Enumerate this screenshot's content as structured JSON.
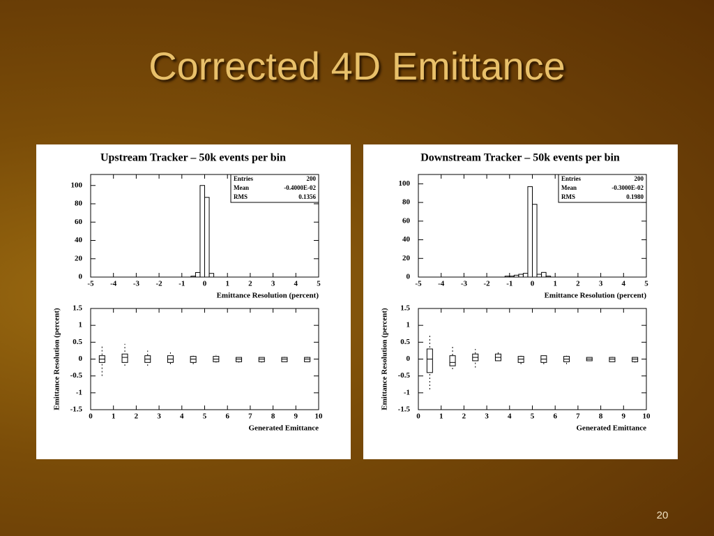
{
  "slide": {
    "title": "Corrected 4D Emittance",
    "page_number": "20"
  },
  "chart_data": [
    {
      "type": "histogram",
      "title": "Upstream Tracker – 50k events per bin",
      "bins": [
        -0.6,
        -0.4,
        -0.2,
        0,
        0.2,
        0.4
      ],
      "counts": [
        1,
        5,
        100,
        87,
        4
      ],
      "xlabel": "Emittance Resolution (percent)",
      "xlim": [
        -5,
        5
      ],
      "xticks": [
        -5,
        -4,
        -3,
        -2,
        -1,
        0,
        1,
        2,
        3,
        4,
        5
      ],
      "ylim": [
        0,
        112
      ],
      "yticks": [
        0,
        20,
        40,
        60,
        80,
        100
      ],
      "stats": [
        {
          "label": "Entries",
          "value": "200"
        },
        {
          "label": "Mean",
          "value": "-0.4000E-02"
        },
        {
          "label": "RMS",
          "value": "0.1356"
        }
      ],
      "color": "#000000"
    },
    {
      "type": "box",
      "xlabel": "Generated Emittance",
      "ylabel": "Emittance Resolution (percent)",
      "x": [
        0.5,
        1.5,
        2.5,
        3.5,
        4.5,
        5.5,
        6.5,
        7.5,
        8.5,
        9.5
      ],
      "median": [
        0,
        0.05,
        0,
        0,
        0,
        0,
        0,
        0,
        0,
        0
      ],
      "q1": [
        -0.1,
        -0.1,
        -0.1,
        -0.1,
        -0.1,
        -0.08,
        -0.08,
        -0.08,
        -0.08,
        -0.08
      ],
      "q3": [
        0.1,
        0.15,
        0.1,
        0.1,
        0.08,
        0.08,
        0.05,
        0.05,
        0.05,
        0.05
      ],
      "min": [
        -0.5,
        -0.2,
        -0.2,
        -0.15,
        -0.15,
        -0.1,
        -0.1,
        -0.1,
        -0.08,
        -0.08
      ],
      "max": [
        0.4,
        0.45,
        0.25,
        0.2,
        0.15,
        0.12,
        0.08,
        0.08,
        0.08,
        0.08
      ],
      "xlim": [
        0,
        10
      ],
      "xticks": [
        0,
        1,
        2,
        3,
        4,
        5,
        6,
        7,
        8,
        9,
        10
      ],
      "ylim": [
        -1.5,
        1.5
      ],
      "yticks": [
        -1.5,
        -1,
        -0.5,
        0,
        0.5,
        1,
        1.5
      ],
      "color": "#000000"
    },
    {
      "type": "histogram",
      "title": "Downstream Tracker – 50k events per bin",
      "bins": [
        -1.2,
        -1,
        -0.8,
        -0.6,
        -0.4,
        -0.2,
        0,
        0.2,
        0.4,
        0.6,
        0.8
      ],
      "counts": [
        1,
        1,
        2,
        3,
        4,
        97,
        78,
        3,
        5,
        1
      ],
      "xlabel": "Emittance Resolution (percent)",
      "xlim": [
        -5,
        5
      ],
      "xticks": [
        -5,
        -4,
        -3,
        -2,
        -1,
        0,
        1,
        2,
        3,
        4,
        5
      ],
      "ylim": [
        0,
        110
      ],
      "yticks": [
        0,
        20,
        40,
        60,
        80,
        100
      ],
      "stats": [
        {
          "label": "Entries",
          "value": "200"
        },
        {
          "label": "Mean",
          "value": "-0.3000E-02"
        },
        {
          "label": "RMS",
          "value": "0.1980"
        }
      ],
      "color": "#000000"
    },
    {
      "type": "box",
      "xlabel": "Generated Emittance",
      "ylabel": "Emittance Resolution (percent)",
      "x": [
        0.5,
        1.5,
        2.5,
        3.5,
        4.5,
        5.5,
        6.5,
        7.5,
        8.5,
        9.5
      ],
      "median": [
        0,
        -0.1,
        0.05,
        0.05,
        0,
        0,
        0,
        0,
        0,
        0
      ],
      "q1": [
        -0.4,
        -0.2,
        -0.05,
        -0.05,
        -0.1,
        -0.1,
        -0.08,
        -0.05,
        -0.08,
        -0.08
      ],
      "q3": [
        0.3,
        0.1,
        0.15,
        0.15,
        0.08,
        0.1,
        0.08,
        0.05,
        0.05,
        0.05
      ],
      "min": [
        -0.9,
        -0.3,
        -0.25,
        -0.05,
        -0.15,
        -0.15,
        -0.15,
        -0.05,
        -0.08,
        -0.1
      ],
      "max": [
        0.75,
        0.4,
        0.3,
        0.2,
        0.1,
        0.15,
        0.1,
        0.05,
        0.08,
        0.08
      ],
      "xlim": [
        0,
        10
      ],
      "xticks": [
        0,
        1,
        2,
        3,
        4,
        5,
        6,
        7,
        8,
        9,
        10
      ],
      "ylim": [
        -1.5,
        1.5
      ],
      "yticks": [
        -1.5,
        -1,
        -0.5,
        0,
        0.5,
        1,
        1.5
      ],
      "color": "#000000"
    }
  ]
}
